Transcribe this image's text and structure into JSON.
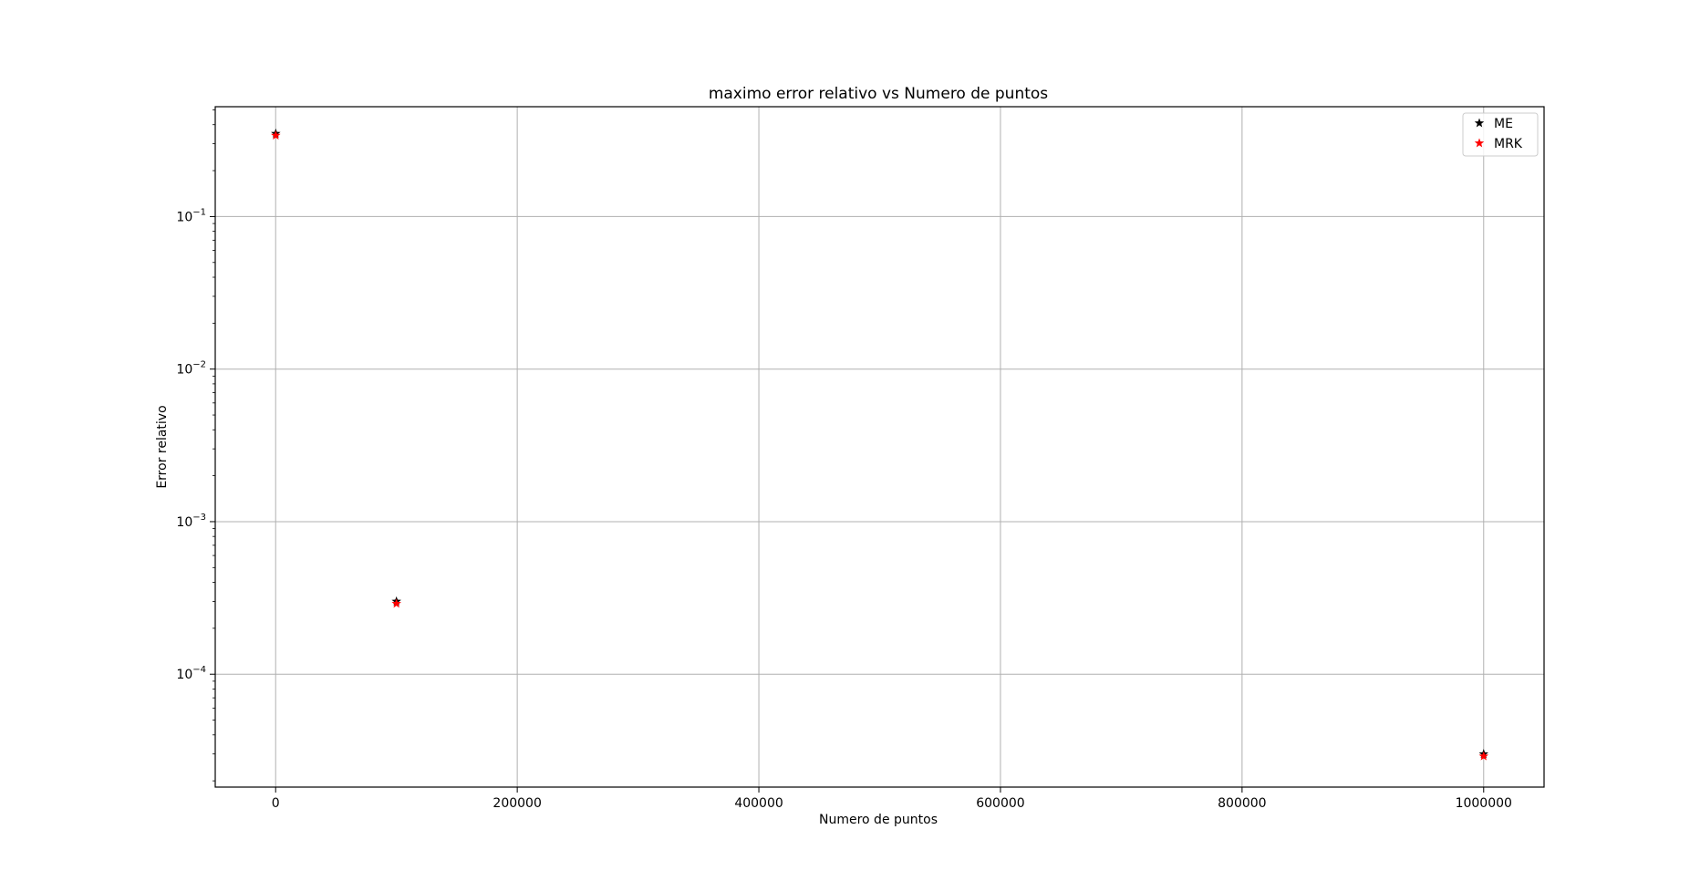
{
  "chart_data": {
    "type": "scatter",
    "title": "maximo error relativo vs Numero de puntos",
    "xlabel": "Numero de puntos",
    "ylabel": "Error relativo",
    "xscale": "linear",
    "yscale": "log",
    "xlim": [
      -50000,
      1050000
    ],
    "ylim_log10": [
      -4.74,
      -0.28
    ],
    "x_ticks": [
      {
        "value": 0,
        "label": "0"
      },
      {
        "value": 200000,
        "label": "200000"
      },
      {
        "value": 400000,
        "label": "400000"
      },
      {
        "value": 600000,
        "label": "600000"
      },
      {
        "value": 800000,
        "label": "800000"
      },
      {
        "value": 1000000,
        "label": "1000000"
      }
    ],
    "y_ticks": [
      {
        "exp": -1,
        "base": "10",
        "sup": "−1"
      },
      {
        "exp": -2,
        "base": "10",
        "sup": "−2"
      },
      {
        "exp": -3,
        "base": "10",
        "sup": "−3"
      },
      {
        "exp": -4,
        "base": "10",
        "sup": "−4"
      }
    ],
    "grid": true,
    "legend_position": "top-right",
    "series": [
      {
        "name": "ME",
        "color": "#000000",
        "marker": "star",
        "points": [
          {
            "x": 100,
            "y": 0.35
          },
          {
            "x": 100000,
            "y": 0.0003
          },
          {
            "x": 1000000,
            "y": 3e-05
          }
        ]
      },
      {
        "name": "MRK",
        "color": "#ff0000",
        "marker": "star",
        "points": [
          {
            "x": 100,
            "y": 0.34
          },
          {
            "x": 100000,
            "y": 0.00029
          },
          {
            "x": 1000000,
            "y": 2.9e-05
          }
        ]
      }
    ]
  }
}
